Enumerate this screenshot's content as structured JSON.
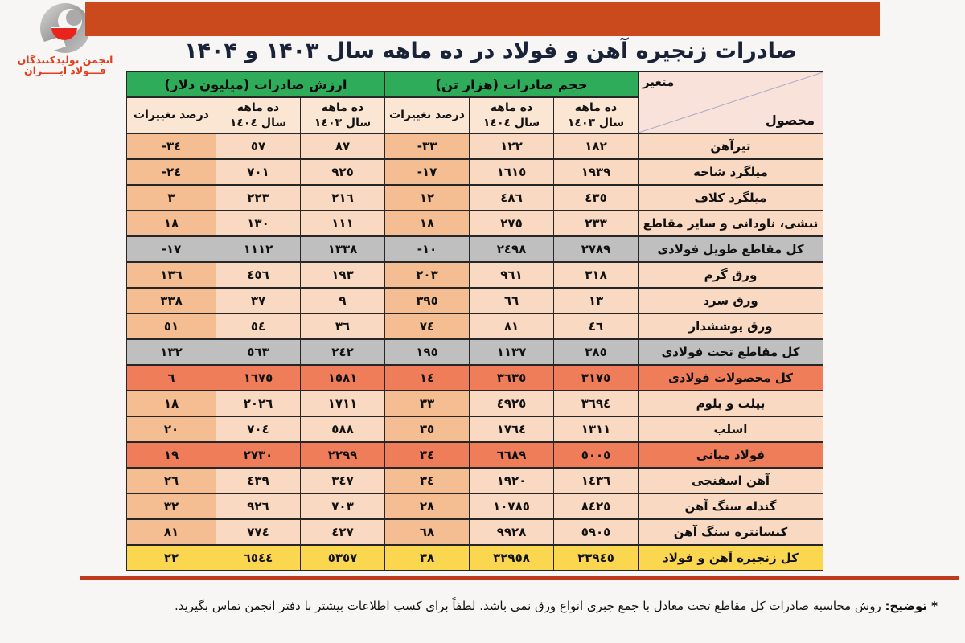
{
  "logo": {
    "line1": "انجمن تولیدکنندگان",
    "line2": "فـــولاد ایـــــران"
  },
  "header": {
    "title": "صادرات زنجیره آهن و فولاد در ده ماهه سال ۱۴۰۳ و ۱۴۰۴"
  },
  "table": {
    "corner": {
      "top": "متغیر",
      "bottom": "محصول"
    },
    "groups": [
      {
        "label": "حجم صادرات (هزار تن)"
      },
      {
        "label": "ارزش صادرات (میلیون دلار)"
      }
    ],
    "subheaders": [
      {
        "l1": "ده ماهه",
        "l2": "سال ١٤٠٣"
      },
      {
        "l1": "ده ماهه",
        "l2": "سال ١٤٠٤"
      },
      {
        "l1": "درصد تغییرات",
        "l2": ""
      }
    ],
    "rows": [
      {
        "product": "تیرآهن",
        "vol_1403": "١٨٢",
        "vol_1404": "١٢٢",
        "vol_pct": "-٣٣",
        "val_1403": "٨٧",
        "val_1404": "٥٧",
        "val_pct": "-٣٤",
        "style": "normal"
      },
      {
        "product": "میلگرد شاخه",
        "vol_1403": "١٩٣٩",
        "vol_1404": "١٦١٥",
        "vol_pct": "-١٧",
        "val_1403": "٩٢٥",
        "val_1404": "٧٠١",
        "val_pct": "-٢٤",
        "style": "normal"
      },
      {
        "product": "میلگرد کلاف",
        "vol_1403": "٤٣٥",
        "vol_1404": "٤٨٦",
        "vol_pct": "١٢",
        "val_1403": "٢١٦",
        "val_1404": "٢٢٣",
        "val_pct": "٣",
        "style": "normal"
      },
      {
        "product": "نبشی، ناودانی و سایر مقاطع",
        "vol_1403": "٢٣٣",
        "vol_1404": "٢٧٥",
        "vol_pct": "١٨",
        "val_1403": "١١١",
        "val_1404": "١٣٠",
        "val_pct": "١٨",
        "style": "normal"
      },
      {
        "product": "کل مقاطع طویل فولادی",
        "vol_1403": "٢٧٨٩",
        "vol_1404": "٢٤٩٨",
        "vol_pct": "-١٠",
        "val_1403": "١٣٣٨",
        "val_1404": "١١١٢",
        "val_pct": "-١٧",
        "style": "gray"
      },
      {
        "product": "ورق گرم",
        "vol_1403": "٣١٨",
        "vol_1404": "٩٦١",
        "vol_pct": "٢٠٣",
        "val_1403": "١٩٣",
        "val_1404": "٤٥٦",
        "val_pct": "١٣٦",
        "style": "normal"
      },
      {
        "product": "ورق سرد",
        "vol_1403": "١٣",
        "vol_1404": "٦٦",
        "vol_pct": "٣٩٥",
        "val_1403": "٩",
        "val_1404": "٣٧",
        "val_pct": "٣٣٨",
        "style": "normal"
      },
      {
        "product": "ورق پوششدار",
        "vol_1403": "٤٦",
        "vol_1404": "٨١",
        "vol_pct": "٧٤",
        "val_1403": "٣٦",
        "val_1404": "٥٤",
        "val_pct": "٥١",
        "style": "normal"
      },
      {
        "product": "کل مقاطع تخت فولادی",
        "vol_1403": "٣٨٥",
        "vol_1404": "١١٣٧",
        "vol_pct": "١٩٥",
        "val_1403": "٢٤٢",
        "val_1404": "٥٦٣",
        "val_pct": "١٣٢",
        "style": "gray"
      },
      {
        "product": "کل محصولات فولادی",
        "vol_1403": "٣١٧٥",
        "vol_1404": "٣٦٣٥",
        "vol_pct": "١٤",
        "val_1403": "١٥٨١",
        "val_1404": "١٦٧٥",
        "val_pct": "٦",
        "style": "orange"
      },
      {
        "product": "بیلت و بلوم",
        "vol_1403": "٣٦٩٤",
        "vol_1404": "٤٩٢٥",
        "vol_pct": "٣٣",
        "val_1403": "١٧١١",
        "val_1404": "٢٠٢٦",
        "val_pct": "١٨",
        "style": "normal"
      },
      {
        "product": "اسلب",
        "vol_1403": "١٣١١",
        "vol_1404": "١٧٦٤",
        "vol_pct": "٣٥",
        "val_1403": "٥٨٨",
        "val_1404": "٧٠٤",
        "val_pct": "٢٠",
        "style": "normal"
      },
      {
        "product": "فولاد میانی",
        "vol_1403": "٥٠٠٥",
        "vol_1404": "٦٦٨٩",
        "vol_pct": "٣٤",
        "val_1403": "٢٢٩٩",
        "val_1404": "٢٧٣٠",
        "val_pct": "١٩",
        "style": "orange"
      },
      {
        "product": "آهن اسفنجی",
        "vol_1403": "١٤٣٦",
        "vol_1404": "١٩٢٠",
        "vol_pct": "٣٤",
        "val_1403": "٣٤٧",
        "val_1404": "٤٣٩",
        "val_pct": "٢٦",
        "style": "normal"
      },
      {
        "product": "گندله سنگ آهن",
        "vol_1403": "٨٤٢٥",
        "vol_1404": "١٠٧٨٥",
        "vol_pct": "٢٨",
        "val_1403": "٧٠٣",
        "val_1404": "٩٢٦",
        "val_pct": "٣٢",
        "style": "normal"
      },
      {
        "product": "کنسانتره سنگ آهن",
        "vol_1403": "٥٩٠٥",
        "vol_1404": "٩٩٢٨",
        "vol_pct": "٦٨",
        "val_1403": "٤٢٧",
        "val_1404": "٧٧٤",
        "val_pct": "٨١",
        "style": "normal"
      },
      {
        "product": "کل زنجیره آهن و فولاد",
        "vol_1403": "٢٣٩٤٥",
        "vol_1404": "٣٢٩٥٨",
        "vol_pct": "٣٨",
        "val_1403": "٥٣٥٧",
        "val_1404": "٦٥٤٤",
        "val_pct": "٢٢",
        "style": "yellow"
      }
    ]
  },
  "footnote": {
    "label": "* توضیح:",
    "text": "روش محاسبه صادرات کل مقاطع تخت معادل با جمع جبری انواع ورق نمی باشد. لطفاً برای کسب اطلاعات بیشتر با دفتر انجمن تماس بگیرید."
  },
  "colors": {
    "top_bar": "#cb4a1d",
    "title_text": "#1a2238",
    "header_green": "#2eac59",
    "subheader_bg": "#fbe6d4",
    "cell_peach": "#fad9c2",
    "cell_pct_peach": "#f5bd92",
    "row_gray": "#bfbfbf",
    "row_orange": "#ef7d5a",
    "row_yellow": "#fbd750",
    "corner_bg": "#f8e2da",
    "red_line": "#be3a1f",
    "logo_red": "#e23c1c"
  }
}
